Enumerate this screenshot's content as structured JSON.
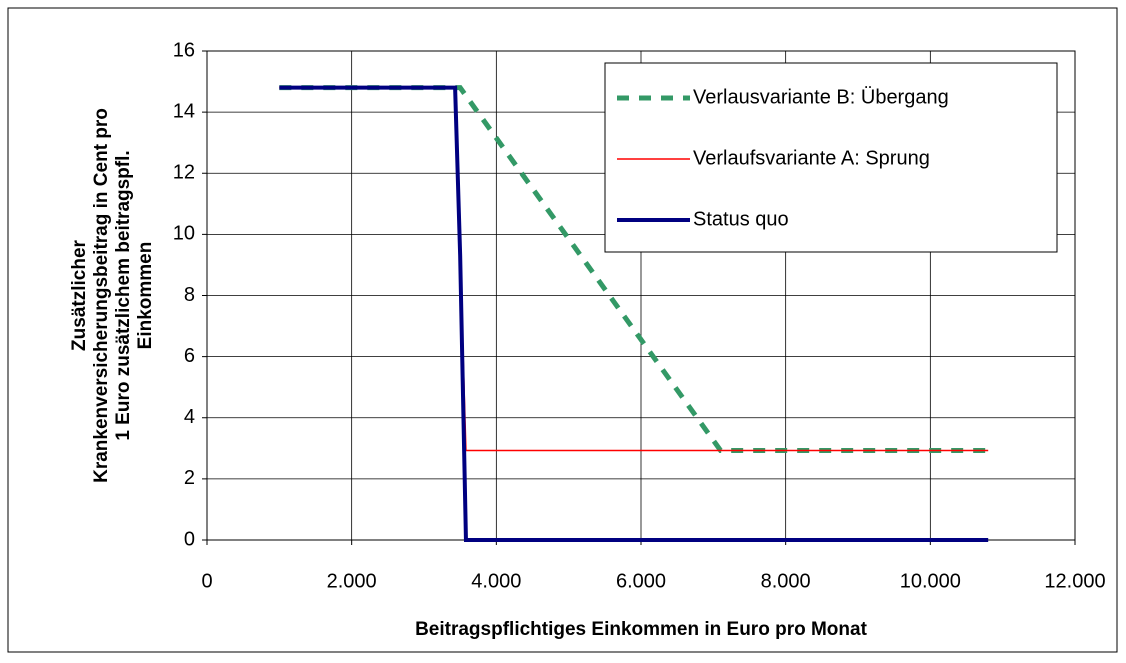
{
  "chart_data": {
    "type": "line",
    "xlabel": "Beitragspflichtiges Einkommen in Euro pro Monat",
    "ylabel": [
      "Zusätzlicher",
      "Krankenversicherungsbeitrag in Cent pro",
      "1 Euro zusätzlichem beitragspfl.",
      "Einkommen"
    ],
    "xlim": [
      0,
      12000
    ],
    "ylim": [
      0,
      16
    ],
    "xticks": [
      0,
      {
        "value": 2000,
        "label": "2.000"
      },
      {
        "value": 4000,
        "label": "4.000"
      },
      {
        "value": 6000,
        "label": "6.000"
      },
      {
        "value": 8000,
        "label": "8.000"
      },
      {
        "value": 10000,
        "label": "10.000"
      },
      {
        "value": 12000,
        "label": "12.000"
      }
    ],
    "yticks": [
      0,
      2,
      4,
      6,
      8,
      10,
      12,
      14,
      16
    ],
    "grid": true,
    "legend": "upper right",
    "series": [
      {
        "name": "Verlausvariante B: Übergang",
        "color": "#339966",
        "style": "dashed",
        "x": [
          1000,
          3500,
          7100,
          10800
        ],
        "values": [
          14.8,
          14.8,
          2.93,
          2.93
        ]
      },
      {
        "name": "Verlaufsvariante A: Sprung",
        "color": "#ff0000",
        "style": "solid",
        "x": [
          1000,
          3430,
          3580,
          10800
        ],
        "values": [
          14.8,
          14.8,
          2.93,
          2.93
        ]
      },
      {
        "name": "Status quo",
        "color": "#000080",
        "style": "thick",
        "x": [
          1000,
          3430,
          3500,
          3580,
          10800
        ],
        "values": [
          14.8,
          14.8,
          9.3,
          0,
          0
        ]
      }
    ]
  }
}
